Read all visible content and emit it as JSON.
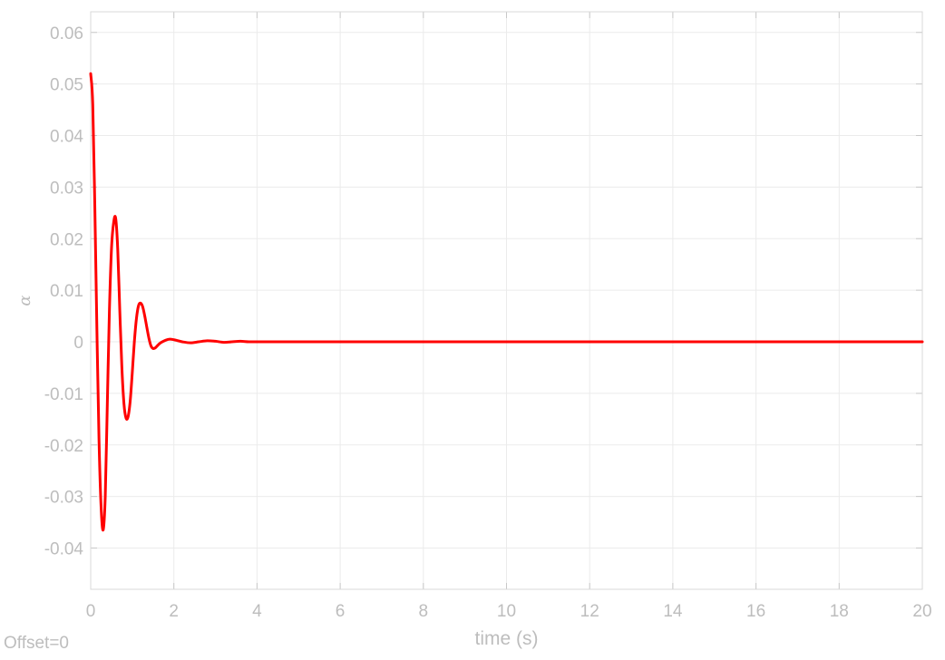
{
  "chart_data": {
    "type": "line",
    "title": "",
    "xlabel": "time (s)",
    "ylabel": "α",
    "xlim": [
      0,
      20
    ],
    "ylim": [
      -0.048,
      0.064
    ],
    "xticks": [
      0,
      2,
      4,
      6,
      8,
      10,
      12,
      14,
      16,
      18,
      20
    ],
    "xtick_labels": [
      "0",
      "2",
      "4",
      "6",
      "8",
      "10",
      "12",
      "14",
      "16",
      "18",
      "20"
    ],
    "yticks": [
      -0.04,
      -0.03,
      -0.02,
      -0.01,
      0,
      0.01,
      0.02,
      0.03,
      0.04,
      0.05,
      0.06
    ],
    "ytick_labels": [
      "-0.04",
      "-0.03",
      "-0.02",
      "-0.01",
      "0",
      "0.01",
      "0.02",
      "0.03",
      "0.04",
      "0.05",
      "0.06"
    ],
    "grid": true,
    "series": [
      {
        "color": "#ff0000",
        "x": [
          0,
          0.05,
          0.1,
          0.15,
          0.2,
          0.25,
          0.3,
          0.35,
          0.4,
          0.45,
          0.5,
          0.55,
          0.6,
          0.65,
          0.7,
          0.75,
          0.8,
          0.85,
          0.9,
          0.95,
          1.0,
          1.05,
          1.1,
          1.15,
          1.2,
          1.25,
          1.3,
          1.35,
          1.4,
          1.45,
          1.5,
          1.55,
          1.6,
          1.65,
          1.7,
          1.8,
          1.9,
          2.0,
          2.1,
          2.2,
          2.4,
          2.6,
          2.8,
          3.0,
          3.2,
          3.4,
          3.6,
          3.8,
          4.0,
          4.5,
          5.0,
          6.0,
          8.0,
          10.0,
          12.0,
          14.0,
          16.0,
          18.0,
          20.0
        ],
        "y": [
          0.052,
          0.046,
          0.026,
          0.002,
          -0.019,
          -0.032,
          -0.0365,
          -0.03,
          -0.012,
          0.006,
          0.018,
          0.023,
          0.024,
          0.018,
          0.006,
          -0.005,
          -0.012,
          -0.0148,
          -0.0145,
          -0.0115,
          -0.006,
          0.0,
          0.0045,
          0.007,
          0.0075,
          0.0068,
          0.005,
          0.0028,
          0.0007,
          -0.0008,
          -0.0013,
          -0.0012,
          -0.0008,
          -0.0004,
          -0.0001,
          0.0003,
          0.0005,
          0.0004,
          0.0002,
          0.0,
          -0.0002,
          0.0,
          0.0002,
          0.0001,
          -0.0001,
          0.0,
          0.0001,
          0.0,
          0.0,
          0.0,
          0.0,
          0.0,
          0.0,
          0.0,
          0.0,
          0.0,
          0.0,
          0.0,
          0.0
        ]
      }
    ]
  },
  "offset_text": "Offset=0"
}
